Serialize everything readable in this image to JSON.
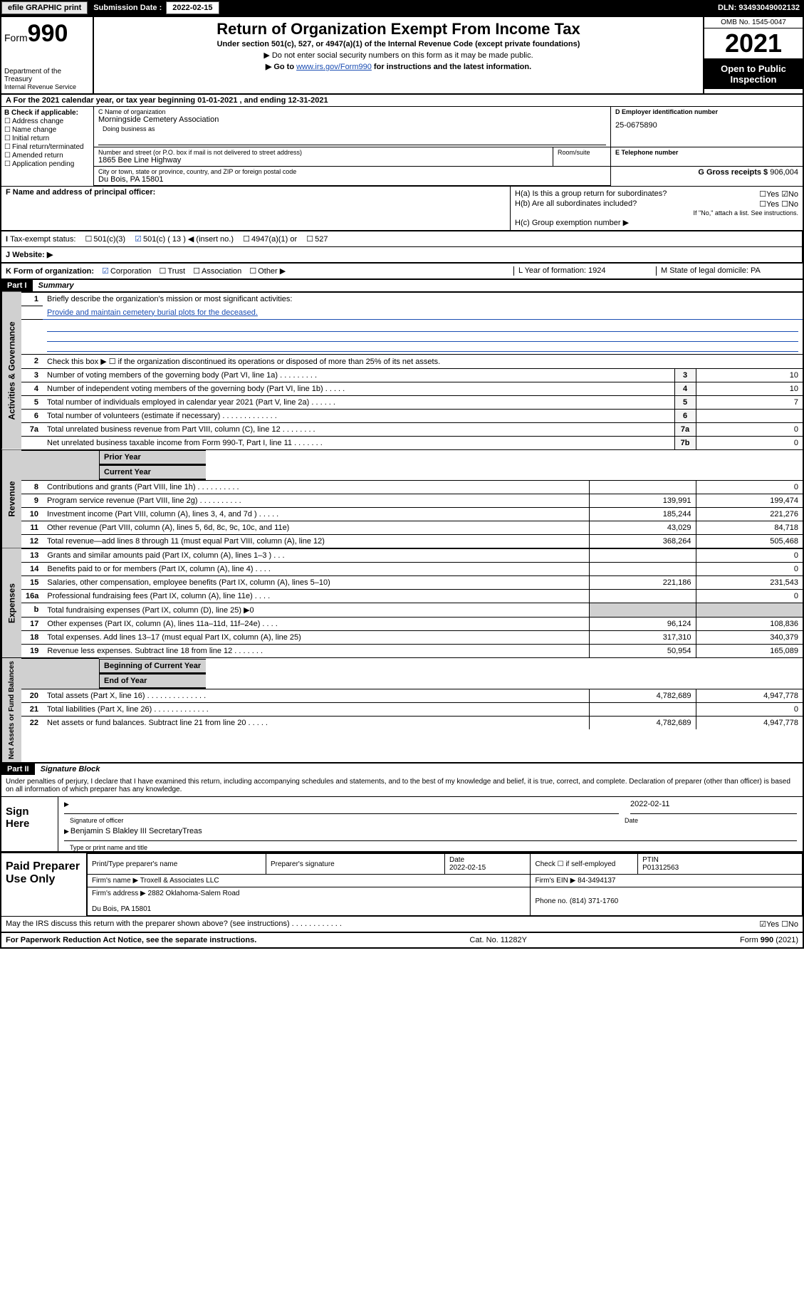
{
  "topbar": {
    "efile": "efile GRAPHIC print",
    "subm_lbl": "Submission Date :",
    "subm_date": "2022-02-15",
    "dln": "DLN: 93493049002132"
  },
  "header": {
    "form": "Form",
    "form_no": "990",
    "dept": "Department of the Treasury",
    "irs": "Internal Revenue Service",
    "title": "Return of Organization Exempt From Income Tax",
    "sub": "Under section 501(c), 527, or 4947(a)(1) of the Internal Revenue Code (except private foundations)",
    "note1": "▶ Do not enter social security numbers on this form as it may be made public.",
    "note2_pre": "▶ Go to ",
    "link": "www.irs.gov/Form990",
    "note2_post": " for instructions and the latest information.",
    "omb": "OMB No. 1545-0047",
    "year": "2021",
    "open": "Open to Public Inspection"
  },
  "rowA": "For the 2021 calendar year, or tax year beginning 01-01-2021    , and ending 12-31-2021",
  "B": {
    "lbl": "B Check if applicable:",
    "opts": [
      "Address change",
      "Name change",
      "Initial return",
      "Final return/terminated",
      "Amended return",
      "Application pending"
    ]
  },
  "C": {
    "name_lbl": "C Name of organization",
    "name": "Morningside Cemetery Association",
    "dba_lbl": "Doing business as",
    "street_lbl": "Number and street (or P.O. box if mail is not delivered to street address)",
    "street": "1865 Bee Line Highway",
    "room_lbl": "Room/suite",
    "city_lbl": "City or town, state or province, country, and ZIP or foreign postal code",
    "city": "Du Bois, PA   15801"
  },
  "D": {
    "lbl": "D Employer identification number",
    "val": "25-0675890"
  },
  "E": {
    "lbl": "E Telephone number"
  },
  "G": {
    "lbl": "G Gross receipts $",
    "val": "906,004"
  },
  "F": {
    "lbl": "F  Name and address of principal officer:"
  },
  "H": {
    "ha": "H(a)  Is this a group return for subordinates?",
    "ha_yn": "☐Yes ☑No",
    "hb": "H(b)  Are all subordinates included?",
    "hb_yn": "☐Yes ☐No",
    "hb_note": "If \"No,\" attach a list. See instructions.",
    "hc": "H(c)  Group exemption number ▶"
  },
  "I": {
    "lbl": "Tax-exempt status:",
    "o1": "501(c)(3)",
    "o2": "501(c) ( 13 ) ◀ (insert no.)",
    "o3": "4947(a)(1) or",
    "o4": "527"
  },
  "J": {
    "lbl": "Website: ▶"
  },
  "K": {
    "lbl": "K Form of organization:",
    "o1": "Corporation",
    "o2": "Trust",
    "o3": "Association",
    "o4": "Other ▶",
    "L": "L Year of formation: 1924",
    "M": "M State of legal domicile: PA"
  },
  "part1": {
    "tab": "Part I",
    "title": "Summary",
    "vtab_gov": "Activities & Governance",
    "vtab_rev": "Revenue",
    "vtab_exp": "Expenses",
    "vtab_net": "Net Assets or Fund Balances",
    "l1": "Briefly describe the organization's mission or most significant activities:",
    "l1v": "Provide and maintain cemetery burial plots for the deceased.",
    "l2": "Check this box ▶ ☐  if the organization discontinued its operations or disposed of more than 25% of its net assets.",
    "rows_gov": [
      {
        "n": "3",
        "t": "Number of voting members of the governing body (Part VI, line 1a)  .   .   .   .   .   .   .   .   .",
        "b": "3",
        "v": "10"
      },
      {
        "n": "4",
        "t": "Number of independent voting members of the governing body (Part VI, line 1b)  .   .   .   .   .",
        "b": "4",
        "v": "10"
      },
      {
        "n": "5",
        "t": "Total number of individuals employed in calendar year 2021 (Part V, line 2a)  .   .   .   .   .   .",
        "b": "5",
        "v": "7"
      },
      {
        "n": "6",
        "t": "Total number of volunteers (estimate if necessary)  .   .   .   .   .   .   .   .   .   .   .   .   .",
        "b": "6",
        "v": ""
      },
      {
        "n": "7a",
        "t": "Total unrelated business revenue from Part VIII, column (C), line 12  .   .   .   .   .   .   .   .",
        "b": "7a",
        "v": "0"
      },
      {
        "n": "",
        "t": "Net unrelated business taxable income from Form 990-T, Part I, line 11  .   .   .   .   .   .   .",
        "b": "7b",
        "v": "0"
      }
    ],
    "py": "Prior Year",
    "cy": "Current Year",
    "rows_rev": [
      {
        "n": "8",
        "t": "Contributions and grants (Part VIII, line 1h)  .   .   .   .   .   .   .   .   .   .",
        "py": "",
        "cy": "0"
      },
      {
        "n": "9",
        "t": "Program service revenue (Part VIII, line 2g)  .   .   .   .   .   .   .   .   .   .",
        "py": "139,991",
        "cy": "199,474"
      },
      {
        "n": "10",
        "t": "Investment income (Part VIII, column (A), lines 3, 4, and 7d )  .   .   .   .   .",
        "py": "185,244",
        "cy": "221,276"
      },
      {
        "n": "11",
        "t": "Other revenue (Part VIII, column (A), lines 5, 6d, 8c, 9c, 10c, and 11e)",
        "py": "43,029",
        "cy": "84,718"
      },
      {
        "n": "12",
        "t": "Total revenue—add lines 8 through 11 (must equal Part VIII, column (A), line 12)",
        "py": "368,264",
        "cy": "505,468"
      }
    ],
    "rows_exp": [
      {
        "n": "13",
        "t": "Grants and similar amounts paid (Part IX, column (A), lines 1–3 )  .   .   .",
        "py": "",
        "cy": "0"
      },
      {
        "n": "14",
        "t": "Benefits paid to or for members (Part IX, column (A), line 4)  .   .   .   .",
        "py": "",
        "cy": "0"
      },
      {
        "n": "15",
        "t": "Salaries, other compensation, employee benefits (Part IX, column (A), lines 5–10)",
        "py": "221,186",
        "cy": "231,543"
      },
      {
        "n": "16a",
        "t": "Professional fundraising fees (Part IX, column (A), line 11e)  .   .   .   .",
        "py": "",
        "cy": "0"
      },
      {
        "n": "b",
        "t": "Total fundraising expenses (Part IX, column (D), line 25) ▶0",
        "py": "__shade__",
        "cy": "__shade__"
      },
      {
        "n": "17",
        "t": "Other expenses (Part IX, column (A), lines 11a–11d, 11f–24e)  .   .   .   .",
        "py": "96,124",
        "cy": "108,836"
      },
      {
        "n": "18",
        "t": "Total expenses. Add lines 13–17 (must equal Part IX, column (A), line 25)",
        "py": "317,310",
        "cy": "340,379"
      },
      {
        "n": "19",
        "t": "Revenue less expenses. Subtract line 18 from line 12  .   .   .   .   .   .   .",
        "py": "50,954",
        "cy": "165,089"
      }
    ],
    "bcy": "Beginning of Current Year",
    "eoy": "End of Year",
    "rows_net": [
      {
        "n": "20",
        "t": "Total assets (Part X, line 16)  .   .   .   .   .   .   .   .   .   .   .   .   .   .",
        "py": "4,782,689",
        "cy": "4,947,778"
      },
      {
        "n": "21",
        "t": "Total liabilities (Part X, line 26)  .   .   .   .   .   .   .   .   .   .   .   .   .",
        "py": "",
        "cy": "0"
      },
      {
        "n": "22",
        "t": "Net assets or fund balances. Subtract line 21 from line 20  .   .   .   .   .",
        "py": "4,782,689",
        "cy": "4,947,778"
      }
    ]
  },
  "part2": {
    "tab": "Part II",
    "title": "Signature Block",
    "decl": "Under penalties of perjury, I declare that I have examined this return, including accompanying schedules and statements, and to the best of my knowledge and belief, it is true, correct, and complete. Declaration of preparer (other than officer) is based on all information of which preparer has any knowledge.",
    "sign_here": "Sign Here",
    "sig_of": "Signature of officer",
    "date_lbl": "Date",
    "date_v": "2022-02-11",
    "name": "Benjamin S Blakley III  SecretaryTreas",
    "name_cap": "Type or print name and title",
    "paid": "Paid Preparer Use Only",
    "pp_name_lbl": "Print/Type preparer's name",
    "pp_sig_lbl": "Preparer's signature",
    "pp_date_lbl": "Date",
    "pp_date": "2022-02-15",
    "pp_check": "Check ☐ if self-employed",
    "ptin_lbl": "PTIN",
    "ptin": "P01312563",
    "firm_lbl": "Firm's name     ▶",
    "firm": "Troxell & Associates LLC",
    "fein_lbl": "Firm's EIN ▶",
    "fein": "84-3494137",
    "faddr_lbl": "Firm's address ▶",
    "faddr1": "2882 Oklahoma-Salem Road",
    "faddr2": "Du Bois, PA   15801",
    "phone_lbl": "Phone no.",
    "phone": "(814) 371-1760",
    "discuss": "May the IRS discuss this return with the preparer shown above? (see instructions)   .   .   .   .   .   .   .   .   .   .   .   .",
    "discuss_yn": "☑Yes  ☐No"
  },
  "footer": {
    "left": "For Paperwork Reduction Act Notice, see the separate instructions.",
    "mid": "Cat. No. 11282Y",
    "right": "Form 990 (2021)"
  }
}
